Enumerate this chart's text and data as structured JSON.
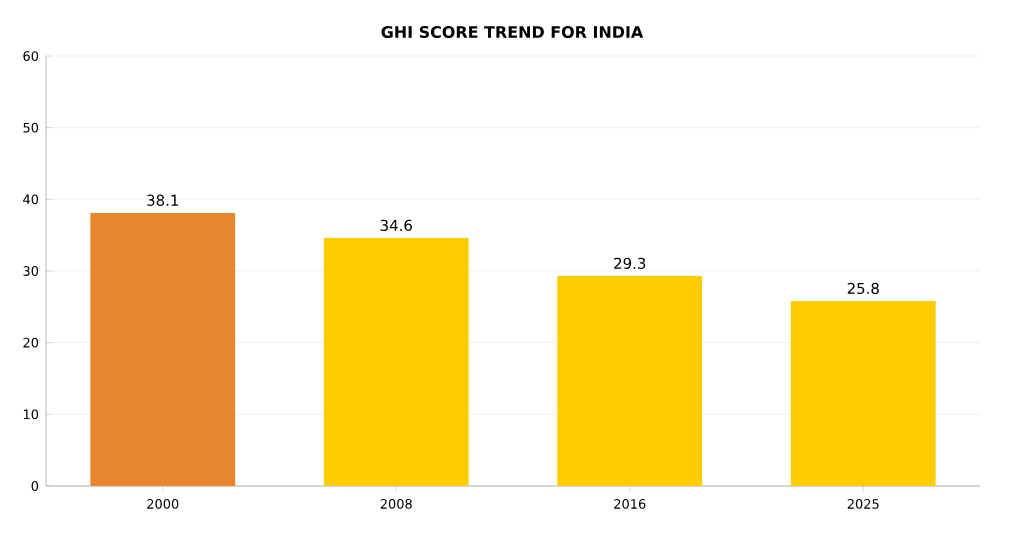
{
  "chart_data": {
    "type": "bar",
    "title": "GHI SCORE TREND FOR INDIA",
    "categories": [
      "2000",
      "2008",
      "2016",
      "2025"
    ],
    "values": [
      38.1,
      34.6,
      29.3,
      25.8
    ],
    "colors": [
      "#e8862e",
      "#ffcc00",
      "#ffcc00",
      "#ffcc00"
    ],
    "ylim": [
      0,
      60
    ],
    "yticks": [
      0,
      10,
      20,
      30,
      40,
      50,
      60
    ],
    "grid": "y",
    "data_labels": true
  }
}
